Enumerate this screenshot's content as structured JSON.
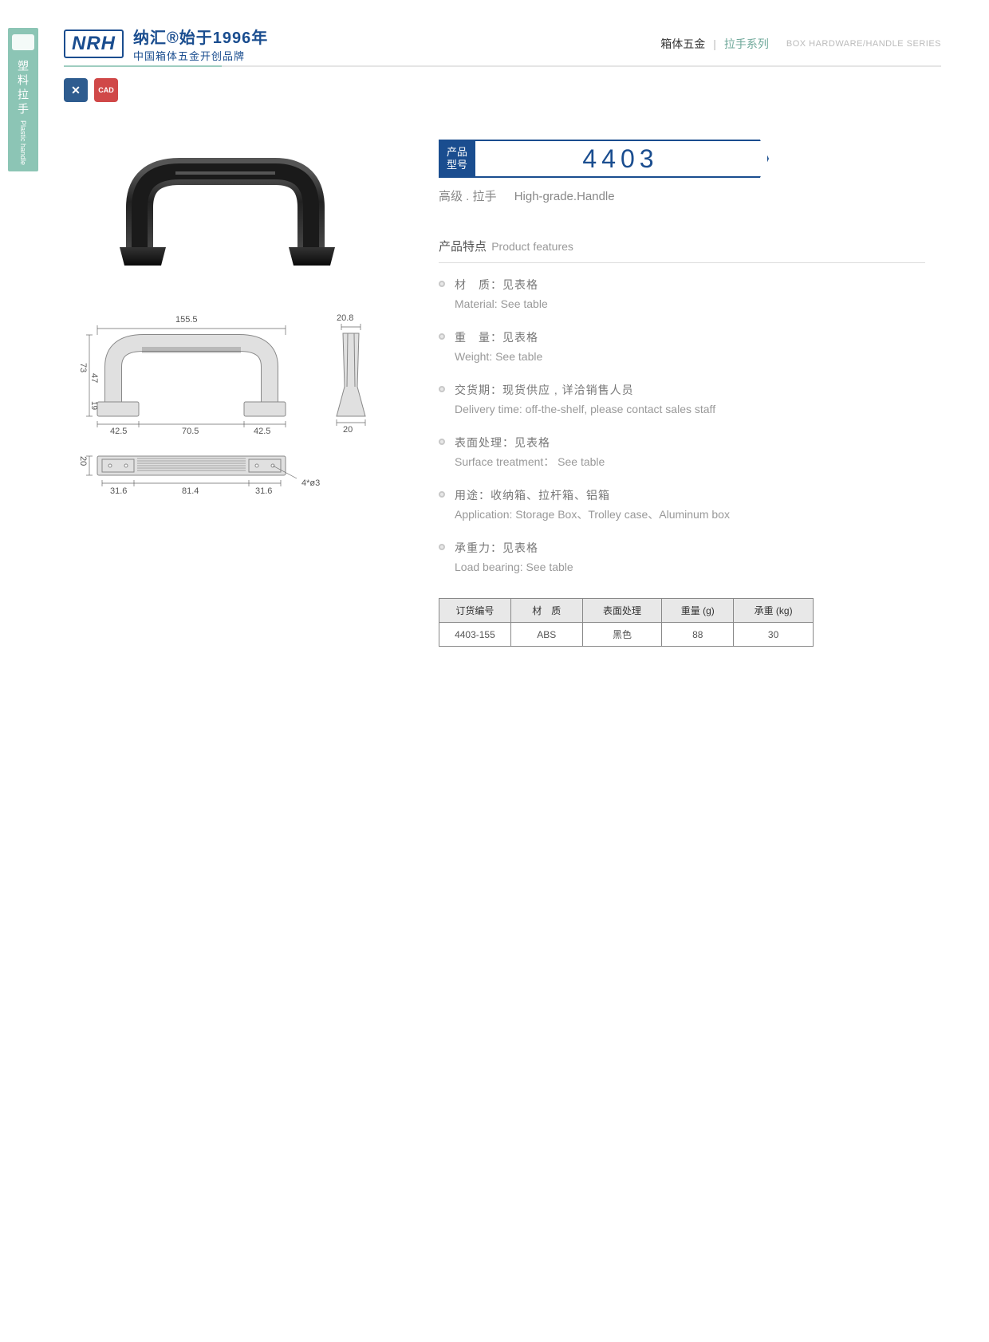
{
  "side_tab": {
    "icon": "handle-icon",
    "zh": "塑料拉手",
    "en": "Plastic handle"
  },
  "header": {
    "logo_abbr": "NRH",
    "logo_top": "纳汇®始于1996年",
    "logo_bottom": "中国箱体五金开创品牌",
    "right_dark": "箱体五金",
    "right_teal": "拉手系列",
    "right_en": "BOX HARDWARE/HANDLE SERIES"
  },
  "badges": {
    "tool": "✕",
    "cad": "CAD"
  },
  "model": {
    "tag_l1": "产品",
    "tag_l2": "型号",
    "number": "4403",
    "sub_zh": "高级 . 拉手",
    "sub_en": "High-grade.Handle"
  },
  "features_header": {
    "zh": "产品特点",
    "en": "Product features"
  },
  "features": [
    {
      "zh": "材　质：见表格",
      "en": "Material: See table"
    },
    {
      "zh": "重　量：见表格",
      "en": "Weight: See table"
    },
    {
      "zh": "交货期：现货供应 , 详洽销售人员",
      "en": "Delivery time: off-the-shelf, please contact sales staff"
    },
    {
      "zh": "表面处理：见表格",
      "en": "Surface treatment： See table"
    },
    {
      "zh": "用途：收纳箱、拉杆箱、铝箱",
      "en": "Application: Storage Box、Trolley case、Aluminum box"
    },
    {
      "zh": "承重力：见表格",
      "en": "Load bearing: See table"
    }
  ],
  "table": {
    "headers": [
      "订货编号",
      "材　质",
      "表面处理",
      "重量 (g)",
      "承重 (kg)"
    ],
    "rows": [
      [
        "4403-155",
        "ABS",
        "黑色",
        "88",
        "30"
      ]
    ],
    "col_widths": [
      "90px",
      "90px",
      "100px",
      "90px",
      "100px"
    ]
  },
  "drawing": {
    "type": "engineering-drawing",
    "stroke": "#888888",
    "text_color": "#555555",
    "bg": "#e0e0e0",
    "dims_front": {
      "width_total": "155.5",
      "foot_w": "42.5",
      "gap": "70.5",
      "h_total": "73",
      "h_grip": "47",
      "h_foot": "19"
    },
    "dims_side": {
      "top_w": "20.8",
      "base_w": "20"
    },
    "dims_bottom": {
      "h": "20",
      "a": "31.6",
      "b": "81.4",
      "c": "31.6",
      "hole": "4*ø3"
    }
  },
  "colors": {
    "brand_blue": "#1a4d8f",
    "teal": "#8cc5b5",
    "badge_red": "#d04848",
    "grey_text": "#888888",
    "border": "#888888"
  }
}
